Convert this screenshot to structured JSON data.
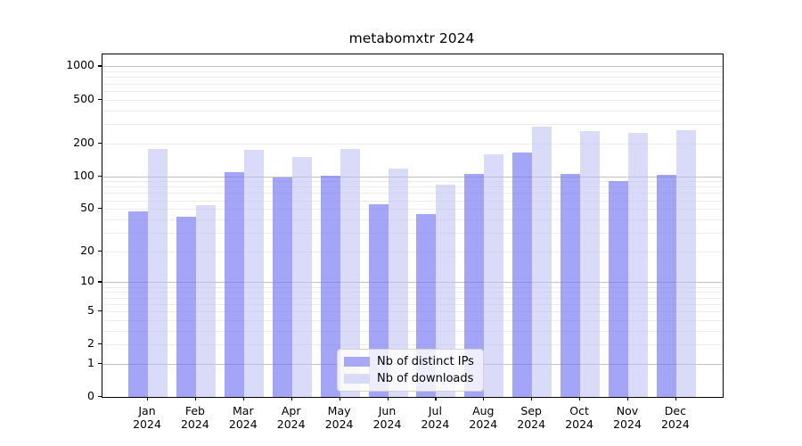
{
  "chart_data": {
    "type": "bar",
    "title": "metabomxtr 2024",
    "categories": [
      {
        "month": "Jan",
        "year": "2024"
      },
      {
        "month": "Feb",
        "year": "2024"
      },
      {
        "month": "Mar",
        "year": "2024"
      },
      {
        "month": "Apr",
        "year": "2024"
      },
      {
        "month": "May",
        "year": "2024"
      },
      {
        "month": "Jun",
        "year": "2024"
      },
      {
        "month": "Jul",
        "year": "2024"
      },
      {
        "month": "Aug",
        "year": "2024"
      },
      {
        "month": "Sep",
        "year": "2024"
      },
      {
        "month": "Oct",
        "year": "2024"
      },
      {
        "month": "Nov",
        "year": "2024"
      },
      {
        "month": "Dec",
        "year": "2024"
      }
    ],
    "series": [
      {
        "name": "Nb of distinct IPs",
        "solid_color": "#a8a8f5",
        "fill": "rgba(116,116,242,0.65)",
        "values": [
          47,
          42,
          108,
          98,
          101,
          55,
          45,
          105,
          165,
          104,
          90,
          102
        ]
      },
      {
        "name": "Nb of downloads",
        "solid_color": "#d9d9f8",
        "fill": "rgba(187,187,244,0.55)",
        "values": [
          178,
          54,
          174,
          150,
          178,
          118,
          83,
          158,
          285,
          260,
          250,
          264
        ]
      }
    ],
    "yscale": "log10(value+1)",
    "y_ticks": [
      0,
      1,
      2,
      5,
      10,
      20,
      50,
      100,
      200,
      500,
      1000
    ],
    "ylim": [
      0,
      1285
    ],
    "xlabel": "",
    "ylabel": "",
    "grid": true,
    "minor_gridlines": [
      2,
      3,
      4,
      5,
      6,
      7,
      8,
      9,
      20,
      30,
      40,
      50,
      60,
      70,
      80,
      90,
      200,
      300,
      400,
      500,
      600,
      700,
      800,
      900
    ],
    "major_gridlines": [
      1,
      10,
      100,
      1000
    ],
    "legend_position": "lower center"
  }
}
